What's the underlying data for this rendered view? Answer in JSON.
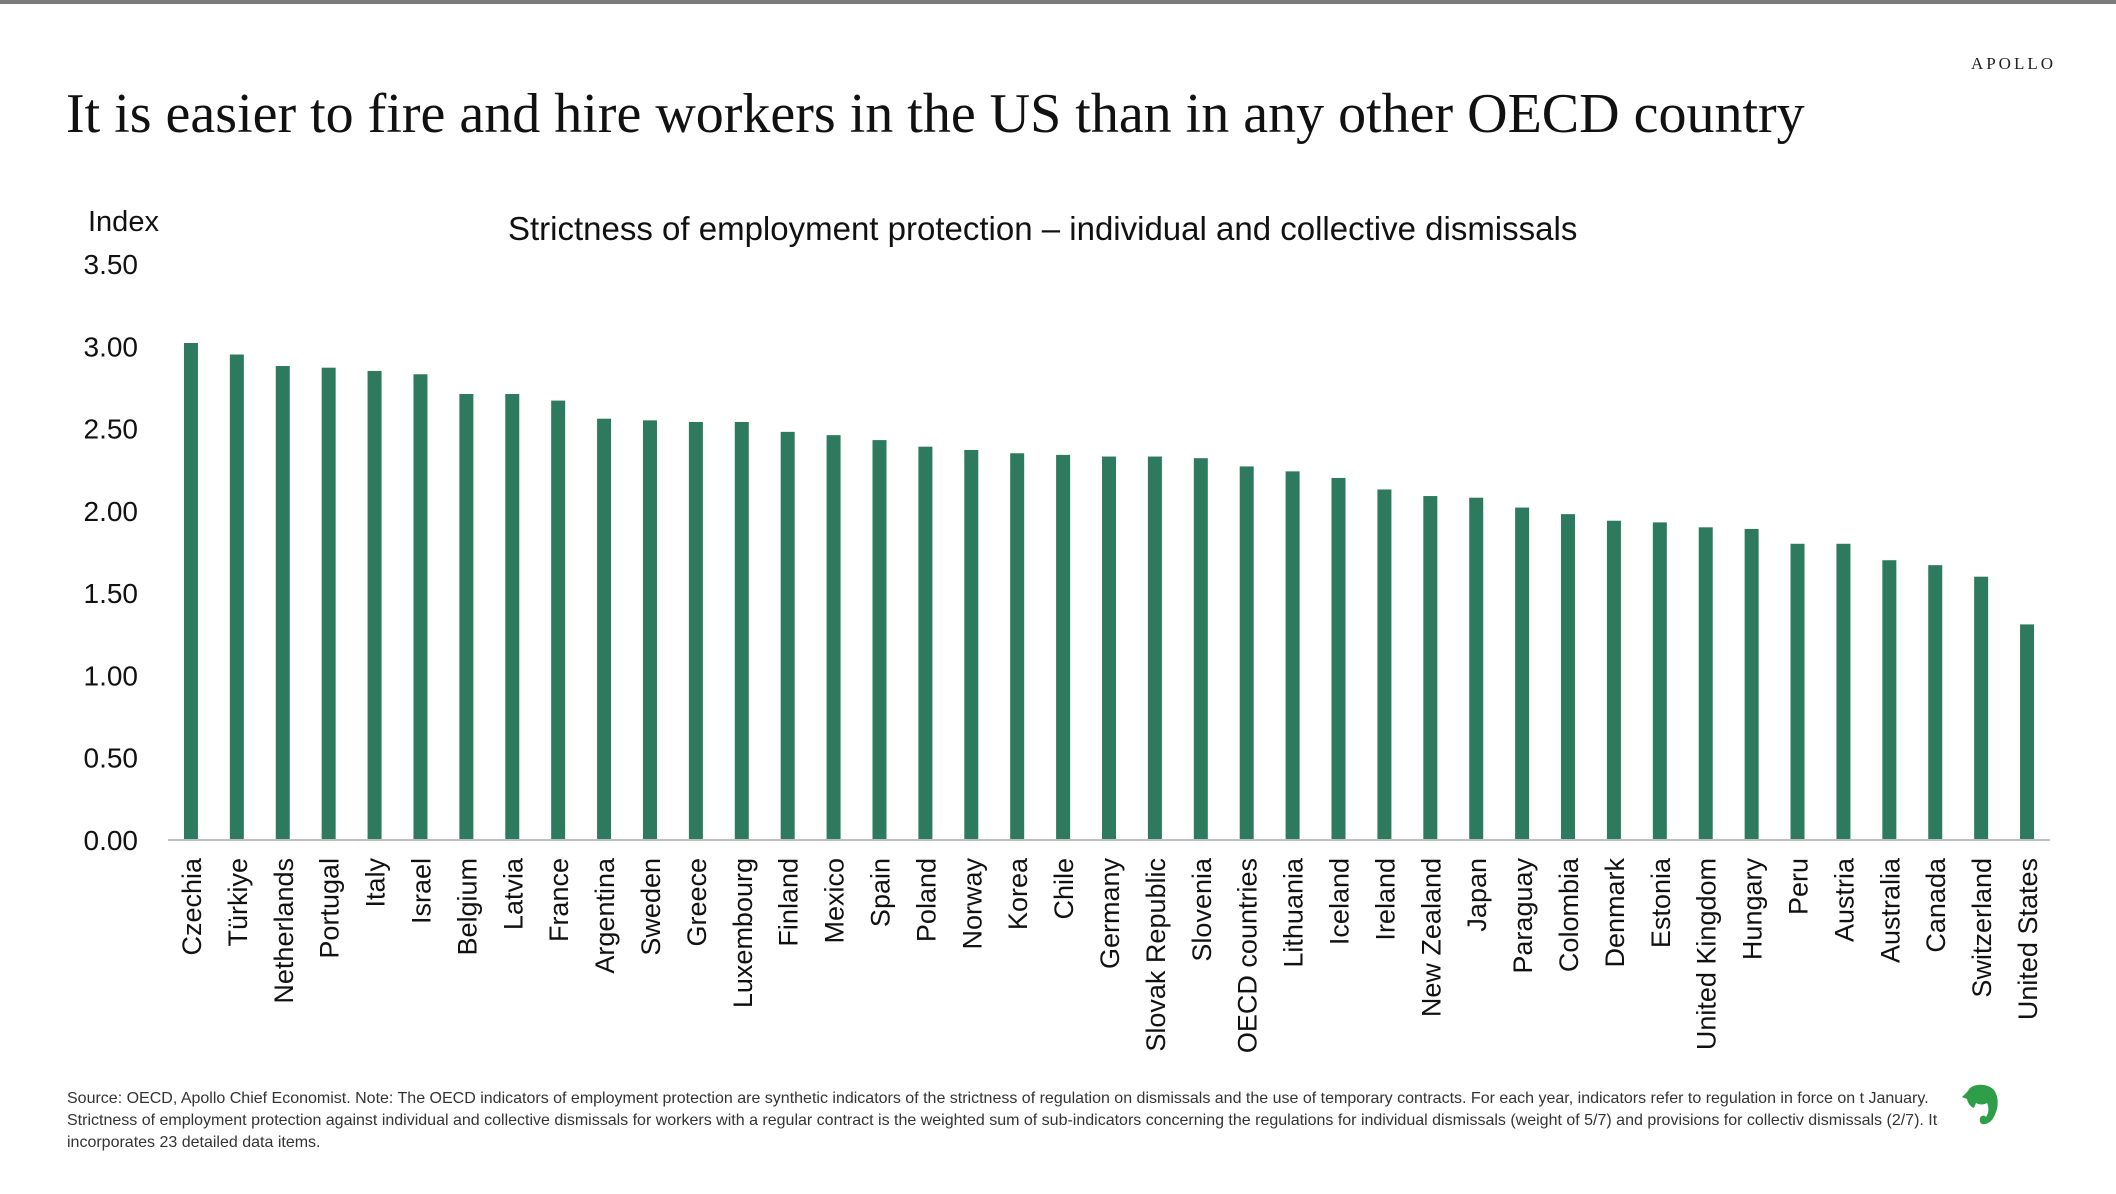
{
  "brand": "APOLLO",
  "title": "It is easier to fire and hire workers in the US than in any other OECD country",
  "footnote": "Source: OECD, Apollo Chief Economist. Note: The OECD indicators of employment protection are synthetic indicators of the strictness of regulation on dismissals and the use of temporary contracts. For each year, indicators refer to regulation in force on t January. Strictness of employment protection against individual and collective dismissals for workers with a regular contract is the weighted sum of sub-indicators concerning the regulations for individual dismissals (weight of 5/7) and provisions for collectiv dismissals (2/7). It incorporates 23 detailed data items.",
  "colors": {
    "bar": "#2e7a5e",
    "axis": "#bfbfbf",
    "text": "#111111",
    "logo": "#2f9e48"
  },
  "icons": {
    "logo": "evernote-elephant-icon"
  },
  "chart_data": {
    "type": "bar",
    "title": "Strictness of employment protection – individual and collective dismissals",
    "ylabel": "Index",
    "xlabel": "",
    "ylim": [
      0,
      3.5
    ],
    "yticks": [
      "0.00",
      "0.50",
      "1.00",
      "1.50",
      "2.00",
      "2.50",
      "3.00",
      "3.50"
    ],
    "grid": false,
    "categories": [
      "Czechia",
      "Türkiye",
      "Netherlands",
      "Portugal",
      "Italy",
      "Israel",
      "Belgium",
      "Latvia",
      "France",
      "Argentina",
      "Sweden",
      "Greece",
      "Luxembourg",
      "Finland",
      "Mexico",
      "Spain",
      "Poland",
      "Norway",
      "Korea",
      "Chile",
      "Germany",
      "Slovak Republic",
      "Slovenia",
      "OECD countries",
      "Lithuania",
      "Iceland",
      "Ireland",
      "New Zealand",
      "Japan",
      "Paraguay",
      "Colombia",
      "Denmark",
      "Estonia",
      "United Kingdom",
      "Hungary",
      "Peru",
      "Austria",
      "Australia",
      "Canada",
      "Switzerland",
      "United States"
    ],
    "values": [
      3.02,
      2.95,
      2.88,
      2.87,
      2.85,
      2.83,
      2.71,
      2.71,
      2.67,
      2.56,
      2.55,
      2.54,
      2.54,
      2.48,
      2.46,
      2.43,
      2.39,
      2.37,
      2.35,
      2.34,
      2.33,
      2.33,
      2.32,
      2.27,
      2.24,
      2.2,
      2.13,
      2.09,
      2.08,
      2.02,
      1.98,
      1.94,
      1.93,
      1.9,
      1.89,
      1.8,
      1.8,
      1.7,
      1.67,
      1.6,
      1.31
    ]
  }
}
